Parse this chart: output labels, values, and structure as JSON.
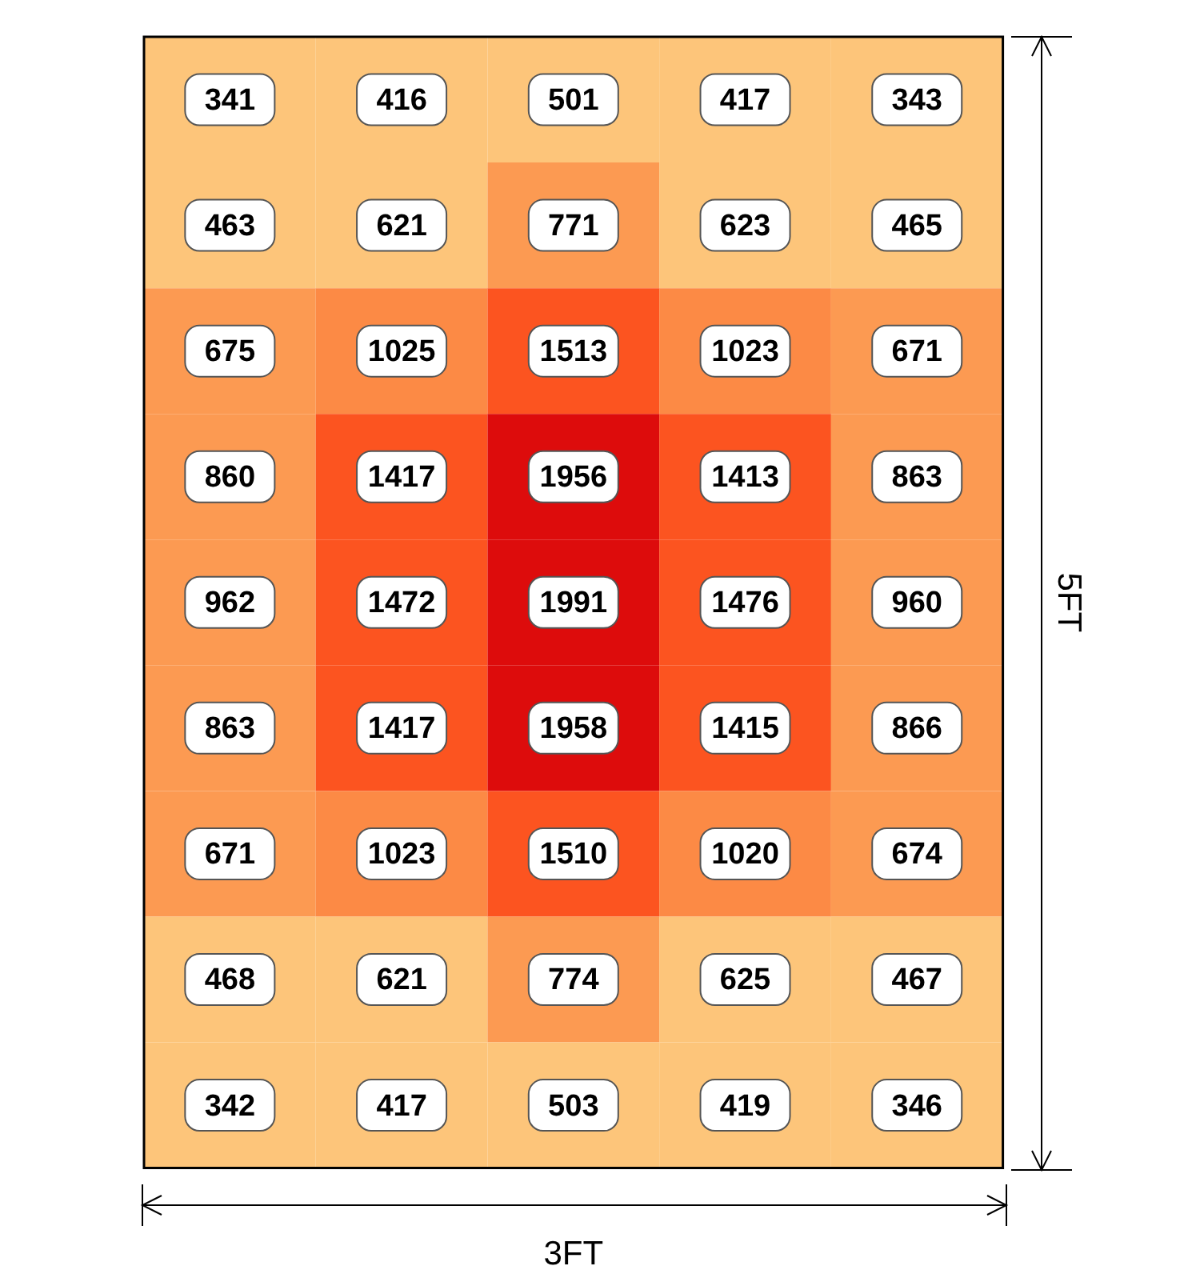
{
  "chart_data": {
    "type": "heatmap",
    "data_labels": true,
    "xlabel": "3FT",
    "ylabel": "5FT",
    "categories": [
      null,
      null,
      null,
      null,
      null
    ],
    "y_categories": [
      null,
      null,
      null,
      null,
      null,
      null,
      null,
      null,
      null
    ],
    "cells": [
      [
        341,
        416,
        501,
        417,
        343
      ],
      [
        463,
        621,
        771,
        623,
        465
      ],
      [
        675,
        1025,
        1513,
        1023,
        671
      ],
      [
        860,
        1417,
        1956,
        1413,
        863
      ],
      [
        962,
        1472,
        1991,
        1476,
        960
      ],
      [
        863,
        1417,
        1958,
        1415,
        866
      ],
      [
        671,
        1023,
        1510,
        1020,
        674
      ],
      [
        468,
        621,
        774,
        625,
        467
      ],
      [
        342,
        417,
        503,
        419,
        346
      ]
    ]
  }
}
